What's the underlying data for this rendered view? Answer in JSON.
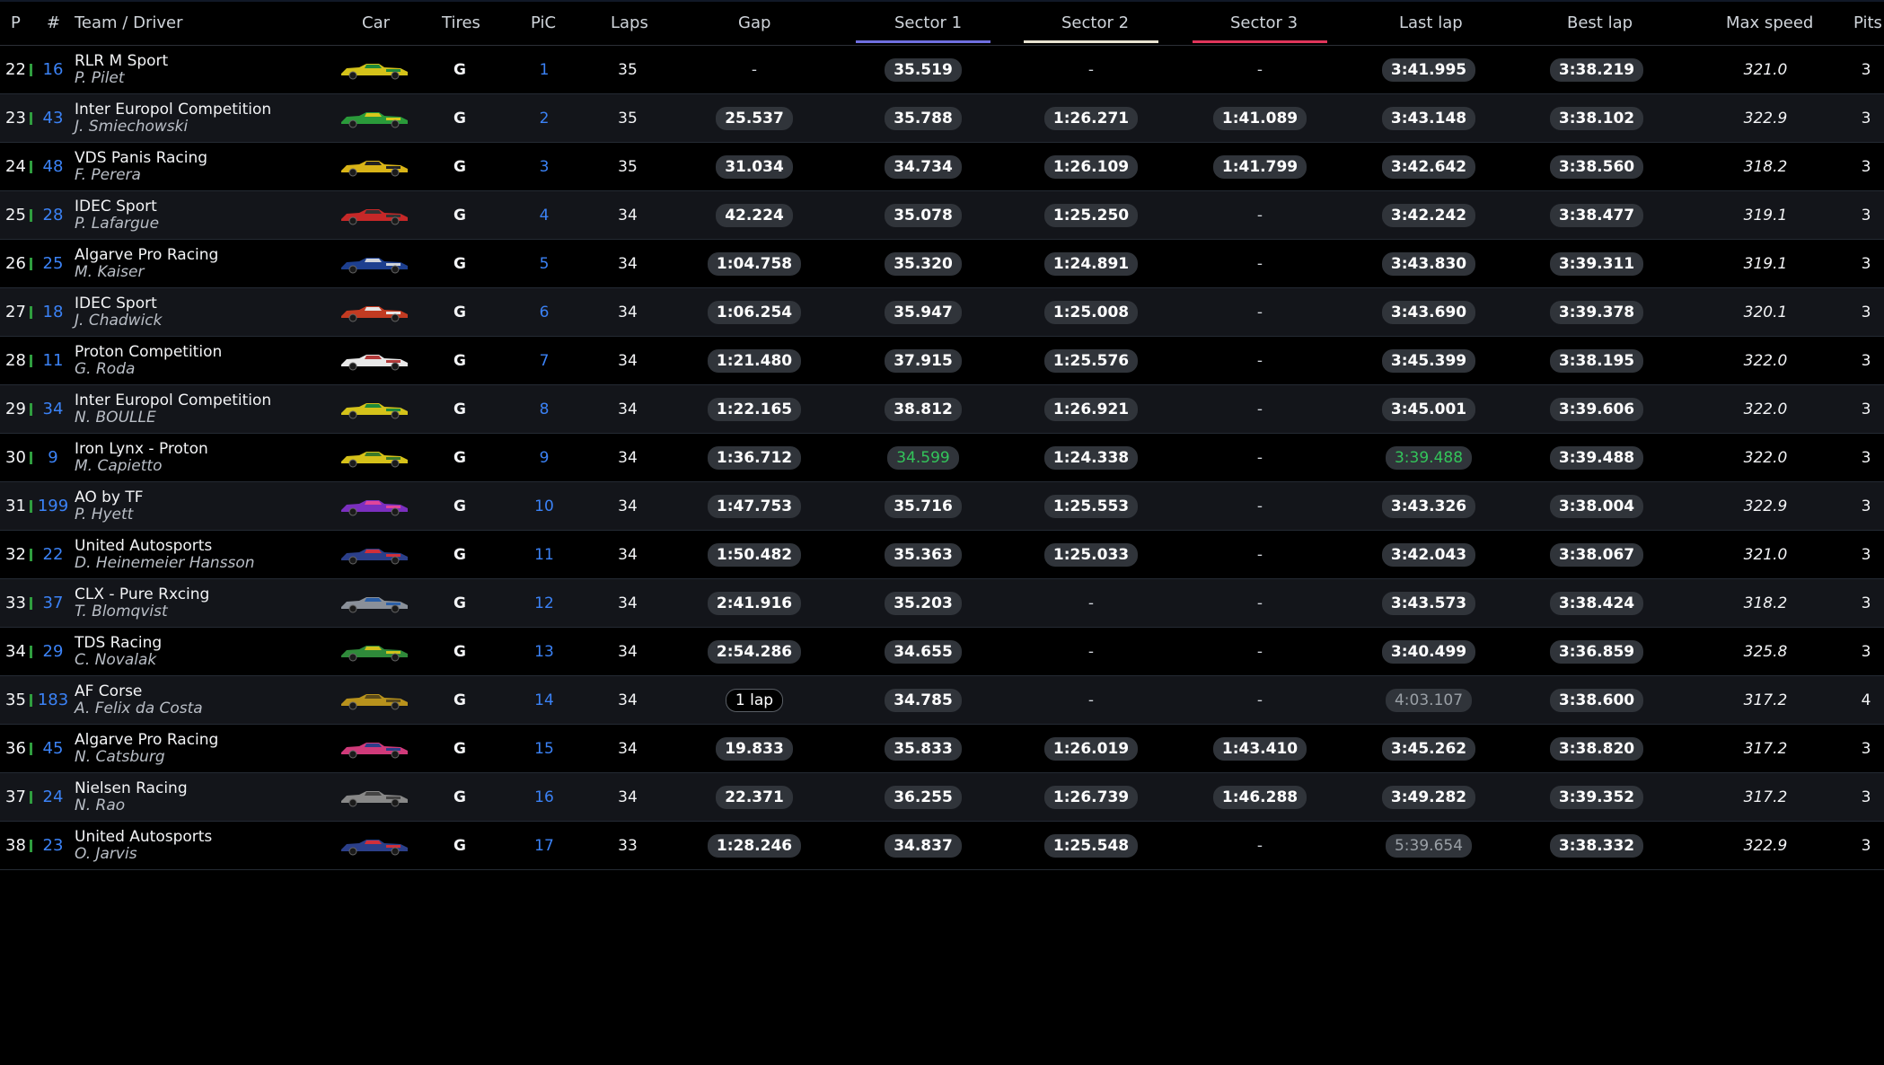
{
  "headers": {
    "p": "P",
    "num": "#",
    "team": "Team / Driver",
    "car": "Car",
    "tires": "Tires",
    "pic": "PiC",
    "laps": "Laps",
    "gap": "Gap",
    "s1": "Sector 1",
    "s2": "Sector 2",
    "s3": "Sector 3",
    "last": "Last lap",
    "best": "Best lap",
    "max": "Max speed",
    "pits": "Pits"
  },
  "colors": {
    "sector1_underline": "#6f6fe0",
    "sector2_underline": "#e8e2d0",
    "sector3_underline": "#e0355a",
    "class_bar": "#2f9e3f",
    "car_number": "#3b82f6",
    "personal_best": "#33c45a"
  },
  "rows": [
    {
      "p": "22",
      "num": "16",
      "team": "RLR M Sport",
      "driver": "P. Pilet",
      "car_icon": "car-livery-yellow-green",
      "tires": "G",
      "pic": "1",
      "laps": "35",
      "gap": "-",
      "s1": "35.519",
      "s2": "-",
      "s3": "-",
      "last": "3:41.995",
      "best": "3:38.219",
      "max": "321.0",
      "pits": "3"
    },
    {
      "p": "23",
      "num": "43",
      "team": "Inter Europol Competition",
      "driver": "J. Smiechowski",
      "car_icon": "car-livery-green-yellow",
      "tires": "G",
      "pic": "2",
      "laps": "35",
      "gap": "25.537",
      "s1": "35.788",
      "s2": "1:26.271",
      "s3": "1:41.089",
      "last": "3:43.148",
      "best": "3:38.102",
      "max": "322.9",
      "pits": "3"
    },
    {
      "p": "24",
      "num": "48",
      "team": "VDS Panis Racing",
      "driver": "F. Perera",
      "car_icon": "car-livery-yellow-black",
      "tires": "G",
      "pic": "3",
      "laps": "35",
      "gap": "31.034",
      "s1": "34.734",
      "s2": "1:26.109",
      "s3": "1:41.799",
      "last": "3:42.642",
      "best": "3:38.560",
      "max": "318.2",
      "pits": "3"
    },
    {
      "p": "25",
      "num": "28",
      "team": "IDEC Sport",
      "driver": "P. Lafargue",
      "car_icon": "car-livery-red",
      "tires": "G",
      "pic": "4",
      "laps": "34",
      "gap": "42.224",
      "s1": "35.078",
      "s2": "1:25.250",
      "s3": "-",
      "last": "3:42.242",
      "best": "3:38.477",
      "max": "319.1",
      "pits": "3"
    },
    {
      "p": "26",
      "num": "25",
      "team": "Algarve Pro Racing",
      "driver": "M. Kaiser",
      "car_icon": "car-livery-blue",
      "tires": "G",
      "pic": "5",
      "laps": "34",
      "gap": "1:04.758",
      "s1": "35.320",
      "s2": "1:24.891",
      "s3": "-",
      "last": "3:43.830",
      "best": "3:39.311",
      "max": "319.1",
      "pits": "3"
    },
    {
      "p": "27",
      "num": "18",
      "team": "IDEC Sport",
      "driver": "J. Chadwick",
      "car_icon": "car-livery-red-white",
      "tires": "G",
      "pic": "6",
      "laps": "34",
      "gap": "1:06.254",
      "s1": "35.947",
      "s2": "1:25.008",
      "s3": "-",
      "last": "3:43.690",
      "best": "3:39.378",
      "max": "320.1",
      "pits": "3"
    },
    {
      "p": "28",
      "num": "11",
      "team": "Proton Competition",
      "driver": "G. Roda",
      "car_icon": "car-livery-white",
      "tires": "G",
      "pic": "7",
      "laps": "34",
      "gap": "1:21.480",
      "s1": "37.915",
      "s2": "1:25.576",
      "s3": "-",
      "last": "3:45.399",
      "best": "3:38.195",
      "max": "322.0",
      "pits": "3"
    },
    {
      "p": "29",
      "num": "34",
      "team": "Inter Europol Competition",
      "driver": "N. BOULLE",
      "car_icon": "car-livery-yellow-green",
      "tires": "G",
      "pic": "8",
      "laps": "34",
      "gap": "1:22.165",
      "s1": "38.812",
      "s2": "1:26.921",
      "s3": "-",
      "last": "3:45.001",
      "best": "3:39.606",
      "max": "322.0",
      "pits": "3"
    },
    {
      "p": "30",
      "num": "9",
      "team": "Iron Lynx - Proton",
      "driver": "M. Capietto",
      "car_icon": "car-livery-yellow",
      "tires": "G",
      "pic": "9",
      "laps": "34",
      "gap": "1:36.712",
      "s1": "34.599",
      "s2": "1:24.338",
      "s3": "-",
      "last": "3:39.488",
      "best": "3:39.488",
      "max": "322.0",
      "pits": "3",
      "s1_green": true,
      "last_green": true
    },
    {
      "p": "31",
      "num": "199",
      "team": "AO by TF",
      "driver": "P. Hyett",
      "car_icon": "car-livery-purple-pink",
      "tires": "G",
      "pic": "10",
      "laps": "34",
      "gap": "1:47.753",
      "s1": "35.716",
      "s2": "1:25.553",
      "s3": "-",
      "last": "3:43.326",
      "best": "3:38.004",
      "max": "322.9",
      "pits": "3"
    },
    {
      "p": "32",
      "num": "22",
      "team": "United Autosports",
      "driver": "D. Heinemeier Hansson",
      "car_icon": "car-livery-blue-red",
      "tires": "G",
      "pic": "11",
      "laps": "34",
      "gap": "1:50.482",
      "s1": "35.363",
      "s2": "1:25.033",
      "s3": "-",
      "last": "3:42.043",
      "best": "3:38.067",
      "max": "321.0",
      "pits": "3"
    },
    {
      "p": "33",
      "num": "37",
      "team": "CLX - Pure Rxcing",
      "driver": "T. Blomqvist",
      "car_icon": "car-livery-grey-blue",
      "tires": "G",
      "pic": "12",
      "laps": "34",
      "gap": "2:41.916",
      "s1": "35.203",
      "s2": "-",
      "s3": "-",
      "last": "3:43.573",
      "best": "3:38.424",
      "max": "318.2",
      "pits": "3"
    },
    {
      "p": "34",
      "num": "29",
      "team": "TDS Racing",
      "driver": "C. Novalak",
      "car_icon": "car-livery-green",
      "tires": "G",
      "pic": "13",
      "laps": "34",
      "gap": "2:54.286",
      "s1": "34.655",
      "s2": "-",
      "s3": "-",
      "last": "3:40.499",
      "best": "3:36.859",
      "max": "325.8",
      "pits": "3"
    },
    {
      "p": "35",
      "num": "183",
      "team": "AF Corse",
      "driver": "A. Felix da Costa",
      "car_icon": "car-livery-gold",
      "tires": "G",
      "pic": "14",
      "laps": "34",
      "gap": "1 lap",
      "s1": "34.785",
      "s2": "-",
      "s3": "-",
      "last": "4:03.107",
      "best": "3:38.600",
      "max": "317.2",
      "pits": "4",
      "gap_lap": true,
      "last_grey": true
    },
    {
      "p": "36",
      "num": "45",
      "team": "Algarve Pro Racing",
      "driver": "N. Catsburg",
      "car_icon": "car-livery-pink-red",
      "tires": "G",
      "pic": "15",
      "laps": "34",
      "gap": "19.833",
      "s1": "35.833",
      "s2": "1:26.019",
      "s3": "1:43.410",
      "last": "3:45.262",
      "best": "3:38.820",
      "max": "317.2",
      "pits": "3"
    },
    {
      "p": "37",
      "num": "24",
      "team": "Nielsen Racing",
      "driver": "N. Rao",
      "car_icon": "car-livery-red-blue",
      "tires": "G",
      "pic": "16",
      "laps": "34",
      "gap": "22.371",
      "s1": "36.255",
      "s2": "1:26.739",
      "s3": "1:46.288",
      "last": "3:49.282",
      "best": "3:39.352",
      "max": "317.2",
      "pits": "3"
    },
    {
      "p": "38",
      "num": "23",
      "team": "United Autosports",
      "driver": "O. Jarvis",
      "car_icon": "car-livery-blue-red",
      "tires": "G",
      "pic": "17",
      "laps": "33",
      "gap": "1:28.246",
      "s1": "34.837",
      "s2": "1:25.548",
      "s3": "-",
      "last": "5:39.654",
      "best": "3:38.332",
      "max": "322.9",
      "pits": "3",
      "last_grey": true
    }
  ]
}
